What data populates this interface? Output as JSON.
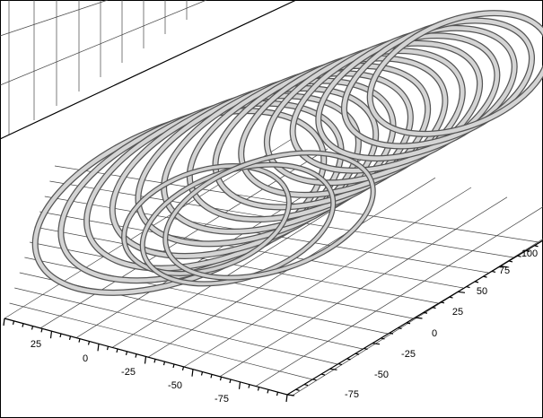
{
  "axes": {
    "front": {
      "ticks": [
        "25",
        "0",
        "-25",
        "-50",
        "-75"
      ]
    },
    "right": {
      "ticks": [
        "100",
        "75",
        "50",
        "25",
        "0",
        "-25",
        "-50",
        "-75"
      ]
    }
  }
}
